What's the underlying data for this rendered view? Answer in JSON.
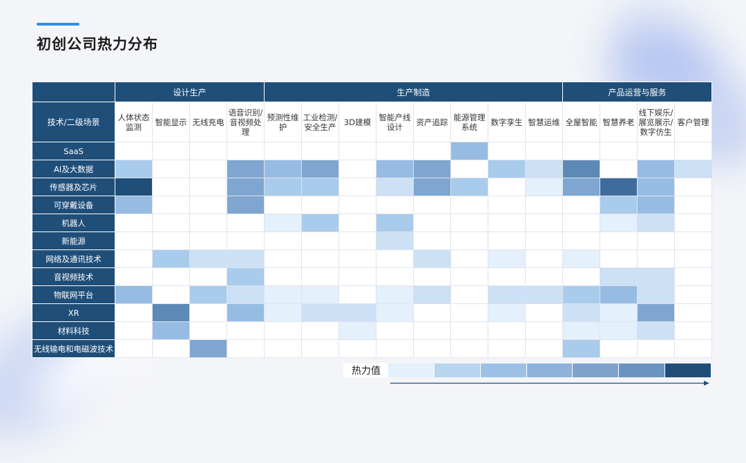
{
  "title": "初创公司热力分布",
  "chart_data": {
    "type": "heatmap",
    "corner_label": "技术/二级场景",
    "groups": [
      {
        "name": "设计生产",
        "span": 4
      },
      {
        "name": "生产制造",
        "span": 8
      },
      {
        "name": "产品运营与服务",
        "span": 4
      }
    ],
    "columns": [
      "人体状态监测",
      "智能显示",
      "无线充电",
      "语音识别/音视频处理",
      "预测性维护",
      "工业检测/安全生产",
      "3D建模",
      "智能产线设计",
      "资产追踪",
      "能源管理系统",
      "数字孪生",
      "智慧运维",
      "全屋智能",
      "智慧养老",
      "线下娱乐/展览展示/数字仿生",
      "客户管理"
    ],
    "rows": [
      "SaaS",
      "AI及大数据",
      "传感器及芯片",
      "可穿戴设备",
      "机器人",
      "新能源",
      "网络及通讯技术",
      "音视频技术",
      "物联网平台",
      "XR",
      "材料科技",
      "无线输电和电磁波技术"
    ],
    "values": [
      [
        0,
        0,
        0,
        0,
        0,
        0,
        0,
        0,
        0,
        4,
        0,
        0,
        0,
        0,
        0,
        0
      ],
      [
        3,
        0,
        0,
        5,
        4,
        5,
        0,
        4,
        5,
        0,
        3,
        2,
        6,
        0,
        4,
        2
      ],
      [
        8,
        0,
        0,
        5,
        3,
        3,
        0,
        2,
        5,
        3,
        0,
        1,
        5,
        7,
        4,
        0
      ],
      [
        4,
        0,
        0,
        5,
        0,
        0,
        0,
        0,
        0,
        0,
        0,
        0,
        0,
        3,
        4,
        0
      ],
      [
        0,
        0,
        0,
        0,
        1,
        3,
        0,
        3,
        0,
        0,
        0,
        0,
        0,
        1,
        2,
        0
      ],
      [
        0,
        0,
        0,
        0,
        0,
        0,
        0,
        2,
        0,
        0,
        0,
        0,
        0,
        0,
        0,
        0
      ],
      [
        0,
        3,
        2,
        2,
        0,
        0,
        0,
        0,
        2,
        0,
        1,
        0,
        1,
        0,
        0,
        0
      ],
      [
        0,
        0,
        0,
        3,
        0,
        0,
        0,
        0,
        0,
        0,
        0,
        0,
        0,
        2,
        2,
        0
      ],
      [
        4,
        0,
        3,
        2,
        1,
        1,
        0,
        1,
        2,
        0,
        2,
        2,
        3,
        4,
        2,
        0
      ],
      [
        0,
        6,
        0,
        4,
        1,
        2,
        2,
        1,
        0,
        0,
        1,
        0,
        2,
        1,
        5,
        0
      ],
      [
        0,
        4,
        0,
        0,
        0,
        0,
        1,
        0,
        0,
        0,
        0,
        0,
        1,
        1,
        2,
        0
      ],
      [
        0,
        0,
        5,
        0,
        0,
        0,
        0,
        0,
        0,
        0,
        0,
        0,
        3,
        0,
        0,
        0
      ]
    ],
    "scale_max": 8,
    "colors": [
      "#ffffff",
      "#e4f0fc",
      "#cce0f6",
      "#a9cbec",
      "#96bce4",
      "#7ea6d0",
      "#5d89b6",
      "#3f6c9c",
      "#1f4e79"
    ],
    "legend": {
      "label": "热力值",
      "colors": [
        "#e4f0fc",
        "#b8d5f0",
        "#9dc1e6",
        "#8eb2dc",
        "#7fa2cc",
        "#6b93c1",
        "#1f4e79"
      ]
    }
  }
}
